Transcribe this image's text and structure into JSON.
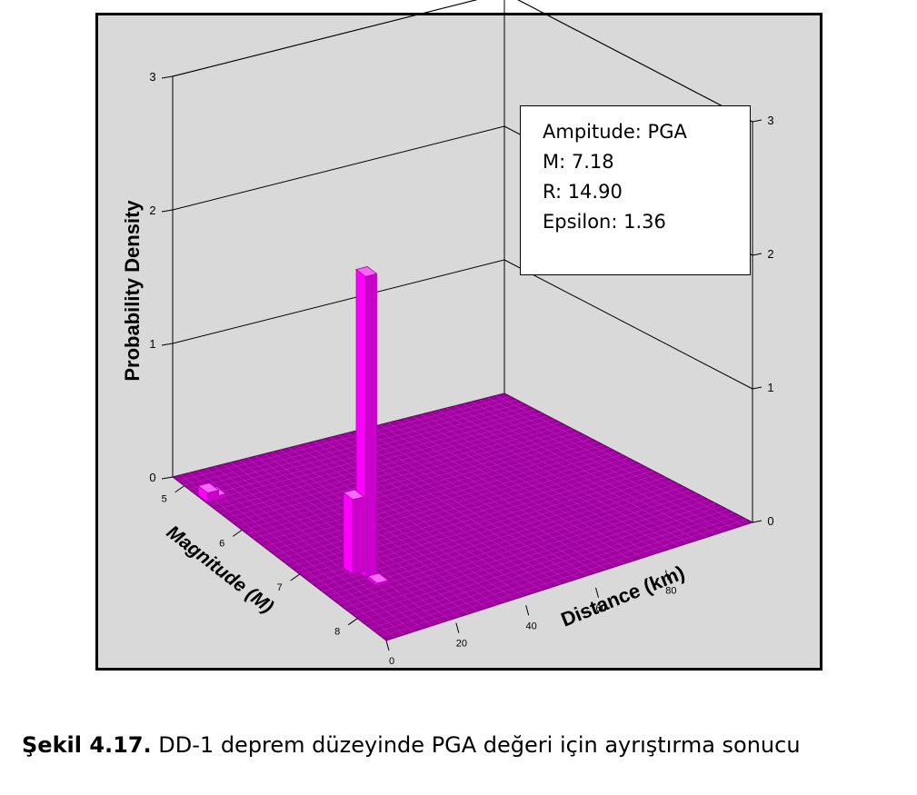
{
  "chart_data": {
    "type": "bar3d",
    "zlabel": "Probability Density",
    "xlabel": "Magnitude (M)",
    "ylabel": "Distance (km)",
    "zlim": [
      0,
      3
    ],
    "z_ticks": [
      "0",
      "1",
      "2",
      "3"
    ],
    "magnitude_ticks": [
      "5",
      "6",
      "7",
      "8"
    ],
    "distance_ticks": [
      "0",
      "20",
      "40",
      "60",
      "80"
    ],
    "bars": [
      {
        "magnitude": 7.25,
        "distance": 15,
        "value": 2.25
      },
      {
        "magnitude": 7.15,
        "distance": 13,
        "value": 0.56
      },
      {
        "magnitude": 7.45,
        "distance": 15,
        "value": 0.02
      },
      {
        "magnitude": 5.3,
        "distance": 2,
        "value": 0.07
      },
      {
        "magnitude": 5.3,
        "distance": 4,
        "value": 0.03
      }
    ],
    "colors": {
      "surface": "#a000a0",
      "bar": "#ff00ff",
      "bar_dark": "#cc00cc",
      "background": "#d9d9d9"
    }
  },
  "annotation": {
    "line1": "Ampitude: PGA",
    "line2": "M: 7.18",
    "line3": "R: 14.90",
    "line4": "Epsilon: 1.36"
  },
  "caption": {
    "label": "Şekil 4.17.",
    "text": " DD-1 deprem düzeyinde PGA değeri için ayrıştırma sonucu"
  }
}
